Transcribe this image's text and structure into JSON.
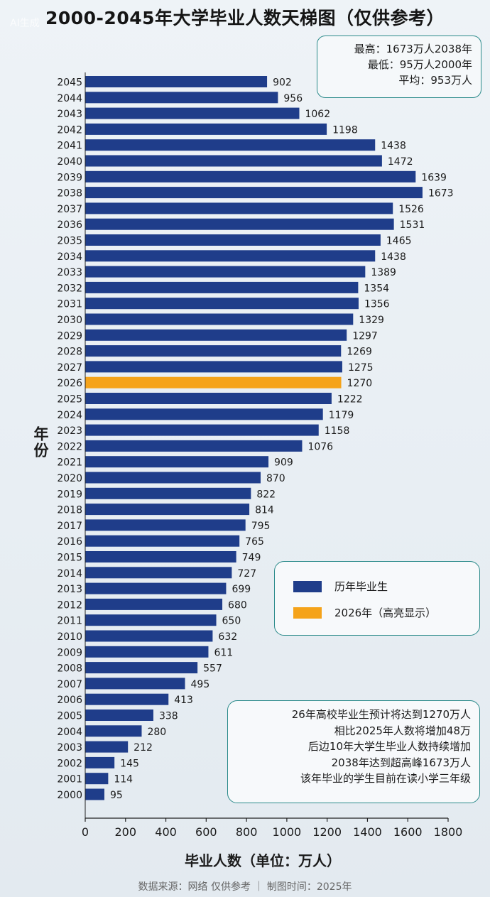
{
  "title": "2000-2045年大学毕业人数天梯图（仅供参考）",
  "watermark": "AI生成",
  "stats": {
    "max": "最高：1673万人2038年",
    "min": "最低：95万人2000年",
    "avg": "平均：953万人"
  },
  "legend": {
    "normal_label": "历年毕业生",
    "highlight_label": "2026年（高亮显示）"
  },
  "notes": [
    "26年高校毕业生预计将达到1270万人",
    "相比2025年人数将增加48万",
    "后边10年大学生毕业人数持续增加",
    "2038年达到超高峰1673万人",
    "该年毕业的学生目前在读小学三年级"
  ],
  "source": "数据来源：网络 仅供参考 ｜ 制图时间：2025年",
  "colors": {
    "bar": "#1f3d8a",
    "highlight": "#f5a31a"
  },
  "chart_data": {
    "type": "bar",
    "orientation": "horizontal",
    "title": "2000-2045年大学毕业人数天梯图（仅供参考）",
    "xlabel": "毕业人数（单位：万人）",
    "ylabel": "年份",
    "xlim": [
      0,
      1800
    ],
    "xticks": [
      0,
      200,
      400,
      600,
      800,
      1000,
      1200,
      1400,
      1600,
      1800
    ],
    "grid": false,
    "legend_position": "right",
    "highlight_category": "2026",
    "categories": [
      "2045",
      "2044",
      "2043",
      "2042",
      "2041",
      "2040",
      "2039",
      "2038",
      "2037",
      "2036",
      "2035",
      "2034",
      "2033",
      "2032",
      "2031",
      "2030",
      "2029",
      "2028",
      "2027",
      "2026",
      "2025",
      "2024",
      "2023",
      "2022",
      "2021",
      "2020",
      "2019",
      "2018",
      "2017",
      "2016",
      "2015",
      "2014",
      "2013",
      "2012",
      "2011",
      "2010",
      "2009",
      "2008",
      "2007",
      "2006",
      "2005",
      "2004",
      "2003",
      "2002",
      "2001",
      "2000"
    ],
    "values": [
      902,
      956,
      1062,
      1198,
      1438,
      1472,
      1639,
      1673,
      1526,
      1531,
      1465,
      1438,
      1389,
      1354,
      1356,
      1329,
      1297,
      1269,
      1275,
      1270,
      1222,
      1179,
      1158,
      1076,
      909,
      870,
      822,
      814,
      795,
      765,
      749,
      727,
      699,
      680,
      650,
      632,
      611,
      557,
      495,
      413,
      338,
      280,
      212,
      145,
      114,
      95
    ]
  }
}
